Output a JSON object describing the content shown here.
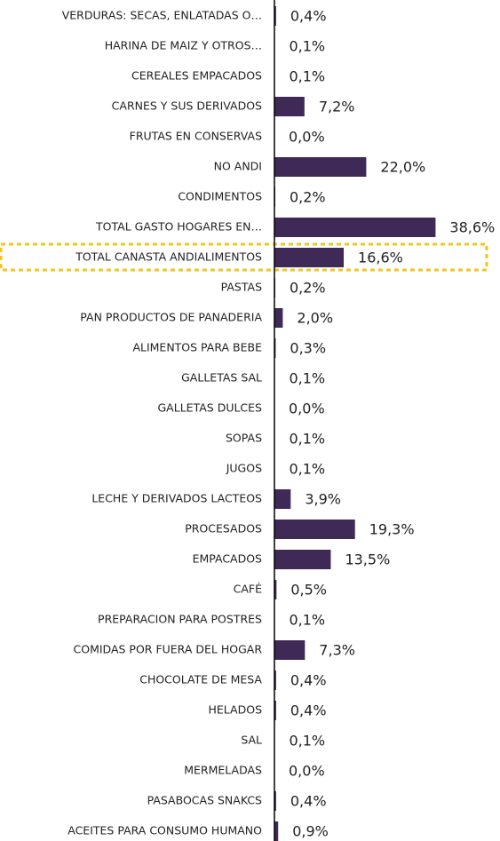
{
  "chart_data": {
    "type": "barh",
    "categories": [
      "VERDURAS: SECAS, ENLATADAS O…",
      "HARINA DE MAIZ Y OTROS…",
      "CEREALES EMPACADOS",
      "CARNES Y SUS DERIVADOS",
      "FRUTAS EN CONSERVAS",
      "NO ANDI",
      "CONDIMENTOS",
      "TOTAL GASTO HOGARES EN…",
      "TOTAL CANASTA ANDIALIMENTOS",
      "PASTAS",
      "PAN PRODUCTOS DE PANADERIA",
      "ALIMENTOS PARA BEBE",
      "GALLETAS SAL",
      "GALLETAS DULCES",
      "SOPAS",
      "JUGOS",
      "LECHE Y DERIVADOS LACTEOS",
      "PROCESADOS",
      "EMPACADOS",
      "CAFÉ",
      "PREPARACION PARA POSTRES",
      "COMIDAS POR FUERA DEL HOGAR",
      "CHOCOLATE DE MESA",
      "HELADOS",
      "SAL",
      "MERMELADAS",
      "PASABOCAS SNAKCS",
      "ACEITES PARA CONSUMO HUMANO"
    ],
    "values": [
      0.4,
      0.1,
      0.1,
      7.2,
      0.0,
      22.0,
      0.2,
      38.6,
      16.6,
      0.2,
      2.0,
      0.3,
      0.1,
      0.0,
      0.1,
      0.1,
      3.9,
      19.3,
      13.5,
      0.5,
      0.1,
      7.3,
      0.4,
      0.4,
      0.1,
      0.0,
      0.4,
      0.9
    ],
    "value_labels": [
      "0,4%",
      "0,1%",
      "0,1%",
      "7,2%",
      "0,0%",
      "22,0%",
      "0,2%",
      "38,6%",
      "16,6%",
      "0,2%",
      "2,0%",
      "0,3%",
      "0,1%",
      "0,0%",
      "0,1%",
      "0,1%",
      "3,9%",
      "19,3%",
      "13,5%",
      "0,5%",
      "0,1%",
      "7,3%",
      "0,4%",
      "0,4%",
      "0,1%",
      "0,0%",
      "0,4%",
      "0,9%"
    ],
    "color": "#3e2957",
    "xlim": [
      0,
      40
    ]
  }
}
